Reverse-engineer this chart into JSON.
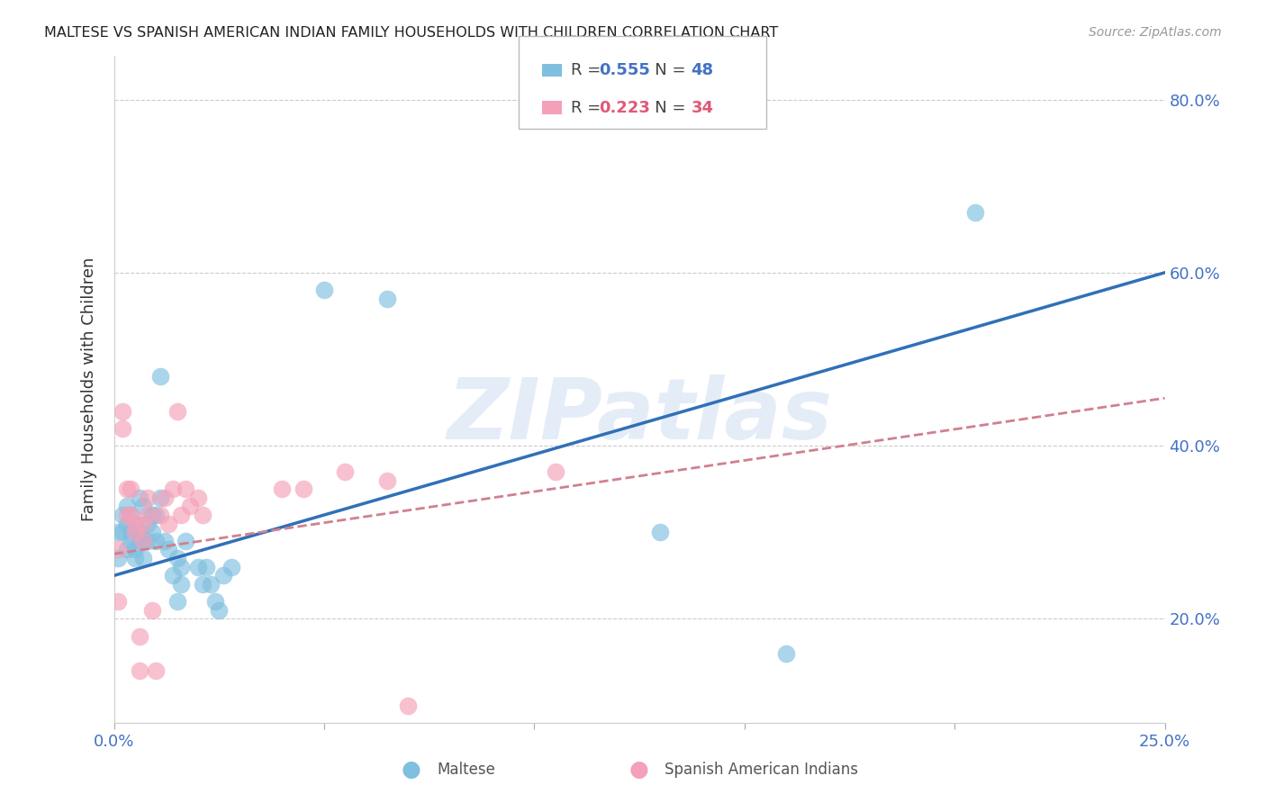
{
  "title": "MALTESE VS SPANISH AMERICAN INDIAN FAMILY HOUSEHOLDS WITH CHILDREN CORRELATION CHART",
  "source": "Source: ZipAtlas.com",
  "ylabel": "Family Households with Children",
  "legend_label1": "Maltese",
  "legend_label2": "Spanish American Indians",
  "R1": 0.555,
  "N1": 48,
  "R2": 0.223,
  "N2": 34,
  "watermark": "ZIPatlas",
  "blue_color": "#7fbfdf",
  "pink_color": "#f4a0b8",
  "blue_line_color": "#3070b8",
  "pink_line_color": "#d08090",
  "axis_label_color": "#4472c4",
  "pink_label_color": "#e05878",
  "grid_color": "#cccccc",
  "xlim": [
    0.0,
    0.25
  ],
  "ylim": [
    0.08,
    0.85
  ],
  "ytick_vals": [
    0.2,
    0.4,
    0.6,
    0.8
  ],
  "ytick_labels": [
    "20.0%",
    "40.0%",
    "60.0%",
    "80.0%"
  ],
  "blue_line_x0": 0.0,
  "blue_line_y0": 0.25,
  "blue_line_x1": 0.25,
  "blue_line_y1": 0.6,
  "pink_line_x0": 0.0,
  "pink_line_y0": 0.275,
  "pink_line_x1": 0.25,
  "pink_line_y1": 0.455,
  "maltese_x": [
    0.001,
    0.001,
    0.002,
    0.002,
    0.003,
    0.003,
    0.003,
    0.004,
    0.004,
    0.004,
    0.005,
    0.005,
    0.005,
    0.006,
    0.006,
    0.006,
    0.007,
    0.007,
    0.007,
    0.008,
    0.008,
    0.009,
    0.009,
    0.01,
    0.01,
    0.011,
    0.011,
    0.012,
    0.013,
    0.014,
    0.015,
    0.015,
    0.016,
    0.016,
    0.017,
    0.02,
    0.021,
    0.022,
    0.023,
    0.024,
    0.025,
    0.026,
    0.028,
    0.05,
    0.065,
    0.13,
    0.16,
    0.205
  ],
  "maltese_y": [
    0.27,
    0.3,
    0.32,
    0.3,
    0.28,
    0.31,
    0.33,
    0.3,
    0.29,
    0.32,
    0.28,
    0.27,
    0.31,
    0.34,
    0.3,
    0.29,
    0.33,
    0.29,
    0.27,
    0.31,
    0.29,
    0.3,
    0.32,
    0.32,
    0.29,
    0.34,
    0.48,
    0.29,
    0.28,
    0.25,
    0.22,
    0.27,
    0.26,
    0.24,
    0.29,
    0.26,
    0.24,
    0.26,
    0.24,
    0.22,
    0.21,
    0.25,
    0.26,
    0.58,
    0.57,
    0.3,
    0.16,
    0.67
  ],
  "sai_x": [
    0.001,
    0.001,
    0.002,
    0.002,
    0.003,
    0.003,
    0.004,
    0.004,
    0.005,
    0.005,
    0.006,
    0.006,
    0.007,
    0.007,
    0.008,
    0.008,
    0.009,
    0.01,
    0.011,
    0.012,
    0.013,
    0.014,
    0.015,
    0.016,
    0.017,
    0.018,
    0.02,
    0.021,
    0.04,
    0.045,
    0.055,
    0.065,
    0.07,
    0.105
  ],
  "sai_y": [
    0.28,
    0.22,
    0.44,
    0.42,
    0.35,
    0.32,
    0.32,
    0.35,
    0.31,
    0.3,
    0.14,
    0.18,
    0.29,
    0.31,
    0.32,
    0.34,
    0.21,
    0.14,
    0.32,
    0.34,
    0.31,
    0.35,
    0.44,
    0.32,
    0.35,
    0.33,
    0.34,
    0.32,
    0.35,
    0.35,
    0.37,
    0.36,
    0.1,
    0.37
  ]
}
